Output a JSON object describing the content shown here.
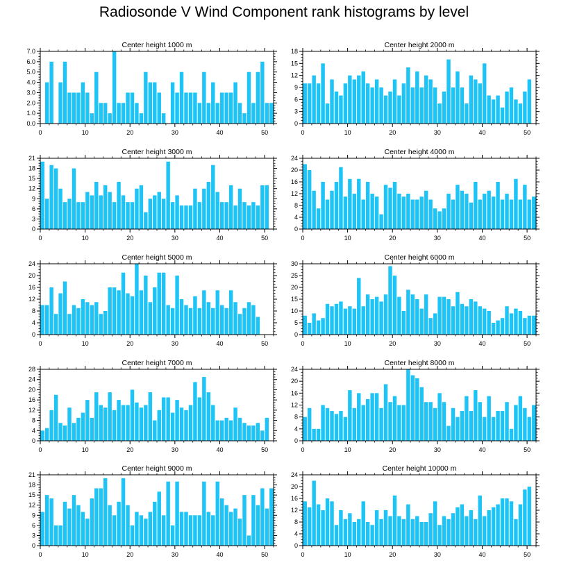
{
  "title": "Radiosonde V Wind Component rank histograms by level",
  "colors": {
    "bar": "#1ec4f6",
    "axis": "#000000",
    "background": "#ffffff"
  },
  "chart_data": [
    {
      "type": "bar",
      "title": "Center height 1000 m",
      "x": [
        0,
        1,
        2,
        3,
        4,
        5,
        6,
        7,
        8,
        9,
        10,
        11,
        12,
        13,
        14,
        15,
        16,
        17,
        18,
        19,
        20,
        21,
        22,
        23,
        24,
        25,
        26,
        27,
        28,
        29,
        30,
        31,
        32,
        33,
        34,
        35,
        36,
        37,
        38,
        39,
        40,
        41,
        42,
        43,
        44,
        45,
        46,
        47,
        48,
        49,
        50,
        51
      ],
      "values": [
        0,
        4,
        6,
        0,
        4,
        6,
        3,
        3,
        3,
        4,
        3,
        1,
        5,
        2,
        2,
        1,
        7,
        2,
        2,
        3,
        3,
        2,
        1,
        5,
        4,
        4,
        3,
        1,
        0,
        4,
        3,
        5,
        3,
        3,
        3,
        2,
        5,
        2,
        4,
        2,
        3,
        3,
        3,
        4,
        2,
        1,
        5,
        2,
        5,
        6,
        2,
        2
      ],
      "xlim": [
        0,
        52
      ],
      "xticks": [
        "0",
        "10",
        "20",
        "30",
        "40",
        "50"
      ],
      "ylim": [
        0,
        7
      ],
      "yticks": [
        "0.0",
        "1.0",
        "2.0",
        "3.0",
        "4.0",
        "5.0",
        "6.0",
        "7.0"
      ]
    },
    {
      "type": "bar",
      "title": "Center height 2000 m",
      "x": [
        0,
        1,
        2,
        3,
        4,
        5,
        6,
        7,
        8,
        9,
        10,
        11,
        12,
        13,
        14,
        15,
        16,
        17,
        18,
        19,
        20,
        21,
        22,
        23,
        24,
        25,
        26,
        27,
        28,
        29,
        30,
        31,
        32,
        33,
        34,
        35,
        36,
        37,
        38,
        39,
        40,
        41,
        42,
        43,
        44,
        45,
        46,
        47,
        48,
        49,
        50,
        51
      ],
      "values": [
        10,
        10,
        12,
        10,
        15,
        5,
        11,
        8,
        7,
        10,
        12,
        11,
        12,
        13,
        10,
        9,
        11,
        9,
        7,
        8,
        11,
        7,
        10,
        14,
        9,
        13,
        9,
        12,
        11,
        9,
        5,
        8,
        16,
        9,
        13,
        9,
        5,
        12,
        11,
        10,
        15,
        7,
        6,
        7,
        4,
        8,
        9,
        6,
        5,
        8,
        11,
        0
      ],
      "xlim": [
        0,
        52
      ],
      "xticks": [
        "0",
        "10",
        "20",
        "30",
        "40",
        "50"
      ],
      "ylim": [
        0,
        18
      ],
      "yticks": [
        "0",
        "3",
        "6",
        "9",
        "12",
        "15",
        "18"
      ]
    },
    {
      "type": "bar",
      "title": "Center height 3000 m",
      "x": [
        0,
        1,
        2,
        3,
        4,
        5,
        6,
        7,
        8,
        9,
        10,
        11,
        12,
        13,
        14,
        15,
        16,
        17,
        18,
        19,
        20,
        21,
        22,
        23,
        24,
        25,
        26,
        27,
        28,
        29,
        30,
        31,
        32,
        33,
        34,
        35,
        36,
        37,
        38,
        39,
        40,
        41,
        42,
        43,
        44,
        45,
        46,
        47,
        48,
        49,
        50,
        51
      ],
      "values": [
        20,
        9,
        19,
        18,
        12,
        8,
        9,
        18,
        8,
        8,
        11,
        10,
        14,
        10,
        13,
        11,
        8,
        14,
        10,
        8,
        8,
        12,
        13,
        5,
        9,
        10,
        11,
        9,
        20,
        8,
        10,
        7,
        7,
        7,
        12,
        8,
        12,
        14,
        19,
        11,
        8,
        8,
        13,
        7,
        12,
        8,
        7,
        8,
        7,
        13,
        13,
        0
      ],
      "xlim": [
        0,
        52
      ],
      "xticks": [
        "0",
        "10",
        "20",
        "30",
        "40",
        "50"
      ],
      "ylim": [
        0,
        21
      ],
      "yticks": [
        "0",
        "3",
        "6",
        "9",
        "12",
        "15",
        "18",
        "21"
      ]
    },
    {
      "type": "bar",
      "title": "Center height 4000 m",
      "x": [
        0,
        1,
        2,
        3,
        4,
        5,
        6,
        7,
        8,
        9,
        10,
        11,
        12,
        13,
        14,
        15,
        16,
        17,
        18,
        19,
        20,
        21,
        22,
        23,
        24,
        25,
        26,
        27,
        28,
        29,
        30,
        31,
        32,
        33,
        34,
        35,
        36,
        37,
        38,
        39,
        40,
        41,
        42,
        43,
        44,
        45,
        46,
        47,
        48,
        49,
        50,
        51
      ],
      "values": [
        22,
        20,
        13,
        7,
        16,
        10,
        13,
        16,
        21,
        11,
        17,
        12,
        17,
        10,
        16,
        12,
        11,
        5,
        15,
        14,
        16,
        12,
        11,
        12,
        10,
        10,
        11,
        13,
        10,
        7,
        6,
        7,
        12,
        10,
        15,
        13,
        12,
        9,
        16,
        10,
        12,
        13,
        11,
        16,
        10,
        12,
        10,
        17,
        10,
        15,
        10,
        11
      ],
      "xlim": [
        0,
        52
      ],
      "xticks": [
        "0",
        "10",
        "20",
        "30",
        "40",
        "50"
      ],
      "ylim": [
        0,
        24
      ],
      "yticks": [
        "0",
        "4",
        "8",
        "12",
        "16",
        "20",
        "24"
      ]
    },
    {
      "type": "bar",
      "title": "Center height 5000 m",
      "x": [
        0,
        1,
        2,
        3,
        4,
        5,
        6,
        7,
        8,
        9,
        10,
        11,
        12,
        13,
        14,
        15,
        16,
        17,
        18,
        19,
        20,
        21,
        22,
        23,
        24,
        25,
        26,
        27,
        28,
        29,
        30,
        31,
        32,
        33,
        34,
        35,
        36,
        37,
        38,
        39,
        40,
        41,
        42,
        43,
        44,
        45,
        46,
        47,
        48,
        49,
        50,
        51
      ],
      "values": [
        10,
        10,
        16,
        7,
        14,
        18,
        7,
        10,
        9,
        12,
        11,
        10,
        11,
        7,
        8,
        16,
        16,
        15,
        21,
        14,
        13,
        24,
        15,
        20,
        11,
        16,
        21,
        21,
        10,
        9,
        20,
        12,
        10,
        9,
        13,
        9,
        15,
        11,
        9,
        15,
        10,
        9,
        15,
        11,
        7,
        9,
        11,
        10,
        6,
        0,
        0,
        0
      ],
      "xlim": [
        0,
        52
      ],
      "xticks": [
        "0",
        "10",
        "20",
        "30",
        "40",
        "50"
      ],
      "ylim": [
        0,
        24
      ],
      "yticks": [
        "0",
        "4",
        "8",
        "12",
        "16",
        "20",
        "24"
      ]
    },
    {
      "type": "bar",
      "title": "Center height 6000 m",
      "x": [
        0,
        1,
        2,
        3,
        4,
        5,
        6,
        7,
        8,
        9,
        10,
        11,
        12,
        13,
        14,
        15,
        16,
        17,
        18,
        19,
        20,
        21,
        22,
        23,
        24,
        25,
        26,
        27,
        28,
        29,
        30,
        31,
        32,
        33,
        34,
        35,
        36,
        37,
        38,
        39,
        40,
        41,
        42,
        43,
        44,
        45,
        46,
        47,
        48,
        49,
        50,
        51
      ],
      "values": [
        8,
        5,
        9,
        6,
        7,
        13,
        12,
        13,
        14,
        11,
        12,
        11,
        24,
        12,
        17,
        15,
        16,
        14,
        17,
        29,
        25,
        16,
        10,
        19,
        17,
        15,
        11,
        17,
        7,
        9,
        16,
        16,
        15,
        12,
        18,
        13,
        12,
        15,
        14,
        12,
        11,
        10,
        5,
        6,
        7,
        12,
        9,
        11,
        10,
        7,
        8,
        8
      ],
      "xlim": [
        0,
        52
      ],
      "xticks": [
        "0",
        "10",
        "20",
        "30",
        "40",
        "50"
      ],
      "ylim": [
        0,
        30
      ],
      "yticks": [
        "0",
        "5",
        "10",
        "15",
        "20",
        "25",
        "30"
      ]
    },
    {
      "type": "bar",
      "title": "Center height 7000 m",
      "x": [
        0,
        1,
        2,
        3,
        4,
        5,
        6,
        7,
        8,
        9,
        10,
        11,
        12,
        13,
        14,
        15,
        16,
        17,
        18,
        19,
        20,
        21,
        22,
        23,
        24,
        25,
        26,
        27,
        28,
        29,
        30,
        31,
        32,
        33,
        34,
        35,
        36,
        37,
        38,
        39,
        40,
        41,
        42,
        43,
        44,
        45,
        46,
        47,
        48,
        49,
        50,
        51
      ],
      "values": [
        4,
        5,
        12,
        18,
        7,
        6,
        13,
        7,
        9,
        11,
        16,
        9,
        19,
        14,
        13,
        19,
        12,
        16,
        14,
        14,
        20,
        15,
        13,
        14,
        19,
        8,
        12,
        17,
        17,
        11,
        16,
        13,
        12,
        14,
        23,
        17,
        25,
        19,
        14,
        8,
        8,
        9,
        8,
        13,
        9,
        7,
        6,
        6,
        7,
        4,
        9,
        0
      ],
      "xlim": [
        0,
        52
      ],
      "xticks": [
        "0",
        "10",
        "20",
        "30",
        "40",
        "50"
      ],
      "ylim": [
        0,
        28
      ],
      "yticks": [
        "0",
        "4",
        "8",
        "12",
        "16",
        "20",
        "24",
        "28"
      ]
    },
    {
      "type": "bar",
      "title": "Center height 8000 m",
      "x": [
        0,
        1,
        2,
        3,
        4,
        5,
        6,
        7,
        8,
        9,
        10,
        11,
        12,
        13,
        14,
        15,
        16,
        17,
        18,
        19,
        20,
        21,
        22,
        23,
        24,
        25,
        26,
        27,
        28,
        29,
        30,
        31,
        32,
        33,
        34,
        35,
        36,
        37,
        38,
        39,
        40,
        41,
        42,
        43,
        44,
        45,
        46,
        47,
        48,
        49,
        50,
        51
      ],
      "values": [
        8,
        11,
        4,
        4,
        12,
        11,
        10,
        9,
        10,
        8,
        17,
        11,
        16,
        12,
        14,
        16,
        16,
        11,
        19,
        13,
        15,
        12,
        12,
        24,
        22,
        21,
        18,
        13,
        13,
        11,
        16,
        13,
        5,
        11,
        8,
        10,
        15,
        10,
        17,
        13,
        8,
        15,
        8,
        10,
        10,
        13,
        4,
        12,
        15,
        11,
        8,
        12
      ],
      "xlim": [
        0,
        52
      ],
      "xticks": [
        "0",
        "10",
        "20",
        "30",
        "40",
        "50"
      ],
      "ylim": [
        0,
        24
      ],
      "yticks": [
        "0",
        "4",
        "8",
        "12",
        "16",
        "20",
        "24"
      ]
    },
    {
      "type": "bar",
      "title": "Center height 9000 m",
      "x": [
        0,
        1,
        2,
        3,
        4,
        5,
        6,
        7,
        8,
        9,
        10,
        11,
        12,
        13,
        14,
        15,
        16,
        17,
        18,
        19,
        20,
        21,
        22,
        23,
        24,
        25,
        26,
        27,
        28,
        29,
        30,
        31,
        32,
        33,
        34,
        35,
        36,
        37,
        38,
        39,
        40,
        41,
        42,
        43,
        44,
        45,
        46,
        47,
        48,
        49,
        50,
        51
      ],
      "values": [
        10,
        15,
        14,
        6,
        6,
        13,
        11,
        15,
        12,
        10,
        8,
        14,
        17,
        17,
        20,
        12,
        9,
        13,
        20,
        12,
        6,
        10,
        9,
        8,
        10,
        13,
        16,
        9,
        19,
        6,
        19,
        10,
        10,
        9,
        9,
        9,
        19,
        10,
        9,
        19,
        14,
        12,
        10,
        11,
        8,
        15,
        3,
        15,
        12,
        17,
        11,
        17
      ],
      "xlim": [
        0,
        52
      ],
      "xticks": [
        "0",
        "10",
        "20",
        "30",
        "40",
        "50"
      ],
      "ylim": [
        0,
        21
      ],
      "yticks": [
        "0",
        "3",
        "6",
        "9",
        "12",
        "15",
        "18",
        "21"
      ]
    },
    {
      "type": "bar",
      "title": "Center height 10000 m",
      "x": [
        0,
        1,
        2,
        3,
        4,
        5,
        6,
        7,
        8,
        9,
        10,
        11,
        12,
        13,
        14,
        15,
        16,
        17,
        18,
        19,
        20,
        21,
        22,
        23,
        24,
        25,
        26,
        27,
        28,
        29,
        30,
        31,
        32,
        33,
        34,
        35,
        36,
        37,
        38,
        39,
        40,
        41,
        42,
        43,
        44,
        45,
        46,
        47,
        48,
        49,
        50,
        51
      ],
      "values": [
        15,
        13,
        22,
        14,
        12,
        16,
        15,
        7,
        12,
        9,
        11,
        8,
        9,
        15,
        8,
        7,
        12,
        9,
        12,
        10,
        17,
        10,
        9,
        14,
        9,
        10,
        8,
        8,
        11,
        15,
        7,
        10,
        9,
        11,
        13,
        14,
        10,
        12,
        9,
        17,
        10,
        12,
        13,
        14,
        16,
        16,
        15,
        9,
        14,
        19,
        20,
        0
      ],
      "xlim": [
        0,
        52
      ],
      "xticks": [
        "0",
        "10",
        "20",
        "30",
        "40",
        "50"
      ],
      "ylim": [
        0,
        24
      ],
      "yticks": [
        "0",
        "4",
        "8",
        "12",
        "16",
        "20",
        "24"
      ]
    }
  ]
}
